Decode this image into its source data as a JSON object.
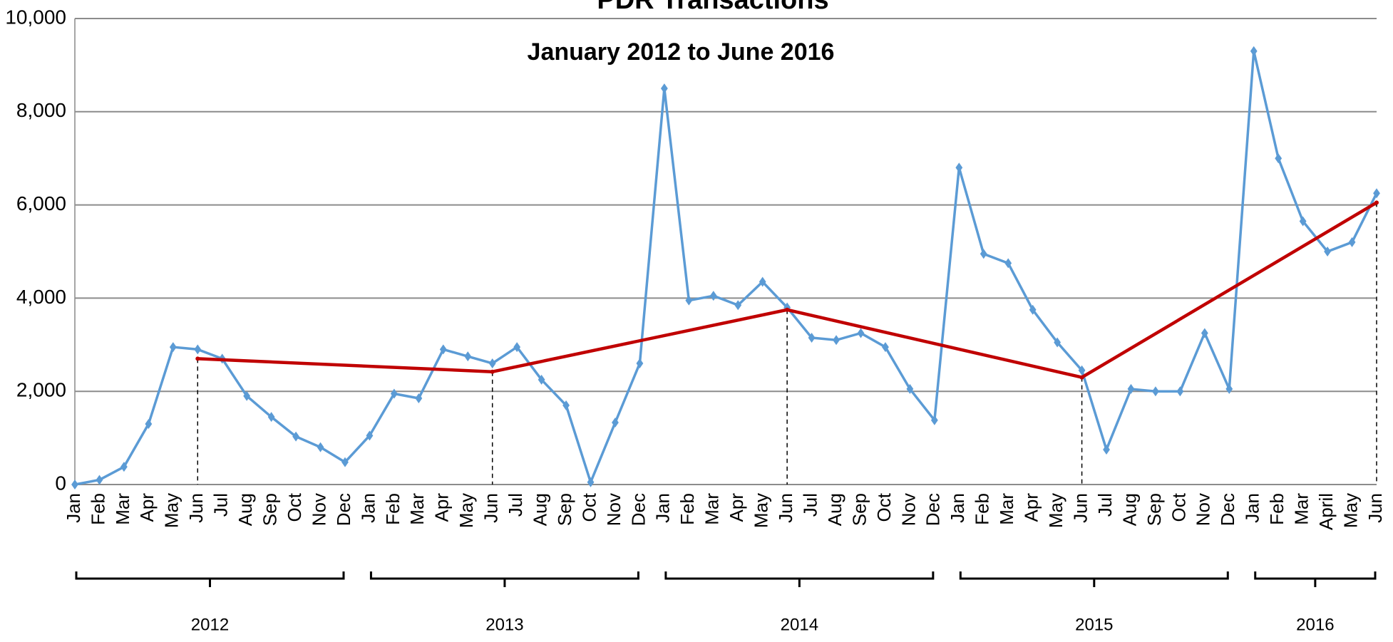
{
  "chart_data": {
    "type": "line",
    "title": "PDR Transactions",
    "subtitle": "January 2012 to June 2016",
    "categories": [
      "Jan",
      "Feb",
      "Mar",
      "Apr",
      "May",
      "Jun",
      "Jul",
      "Aug",
      "Sep",
      "Oct",
      "Nov",
      "Dec",
      "Jan",
      "Feb",
      "Mar",
      "Apr",
      "May",
      "Jun",
      "Jul",
      "Aug",
      "Sep",
      "Oct",
      "Nov",
      "Dec",
      "Jan",
      "Feb",
      "Mar",
      "Apr",
      "May",
      "Jun",
      "Jul",
      "Aug",
      "Sep",
      "Oct",
      "Nov",
      "Dec",
      "Jan",
      "Feb",
      "Mar",
      "Apr",
      "May",
      "Jun",
      "Jul",
      "Aug",
      "Sep",
      "Oct",
      "Nov",
      "Dec",
      "Jan",
      "Feb",
      "Mar",
      "April",
      "May",
      "Jun"
    ],
    "groups": [
      {
        "label": "2012",
        "count": 12
      },
      {
        "label": "2013",
        "count": 12
      },
      {
        "label": "2014",
        "count": 12
      },
      {
        "label": "2015",
        "count": 12
      },
      {
        "label": "2016",
        "count": 6
      }
    ],
    "series": [
      {
        "color": "#5b9bd5",
        "values": [
          0,
          100,
          380,
          1300,
          2950,
          2900,
          2700,
          1900,
          1450,
          1030,
          800,
          480,
          1050,
          1950,
          1850,
          2900,
          2750,
          2600,
          2950,
          2250,
          1700,
          50,
          1330,
          2600,
          8500,
          3950,
          4050,
          3850,
          4350,
          3800,
          3150,
          3100,
          3250,
          2950,
          2050,
          1380,
          6800,
          4950,
          4750,
          3750,
          3050,
          2450,
          750,
          2050,
          2000,
          2000,
          3250,
          2050,
          9300,
          7000,
          5650,
          5000,
          5200,
          6250
        ]
      },
      {
        "color": "#c00000",
        "values": [
          null,
          null,
          null,
          null,
          null,
          2700,
          null,
          null,
          null,
          null,
          null,
          null,
          null,
          null,
          null,
          null,
          null,
          2420,
          null,
          null,
          null,
          null,
          null,
          null,
          null,
          null,
          null,
          null,
          null,
          3750,
          null,
          null,
          null,
          null,
          null,
          null,
          null,
          null,
          null,
          null,
          null,
          2300,
          null,
          null,
          null,
          null,
          null,
          null,
          null,
          null,
          null,
          null,
          null,
          6050
        ]
      }
    ],
    "ylim": [
      0,
      10000
    ],
    "yticks": [
      0,
      {
        "value": 2000,
        "label": "2,000"
      },
      {
        "value": 4000,
        "label": "4,000"
      },
      {
        "value": 6000,
        "label": "6,000"
      },
      {
        "value": 8000,
        "label": "8,000"
      },
      {
        "value": 10000,
        "label": "10,000"
      }
    ],
    "grid": true
  }
}
